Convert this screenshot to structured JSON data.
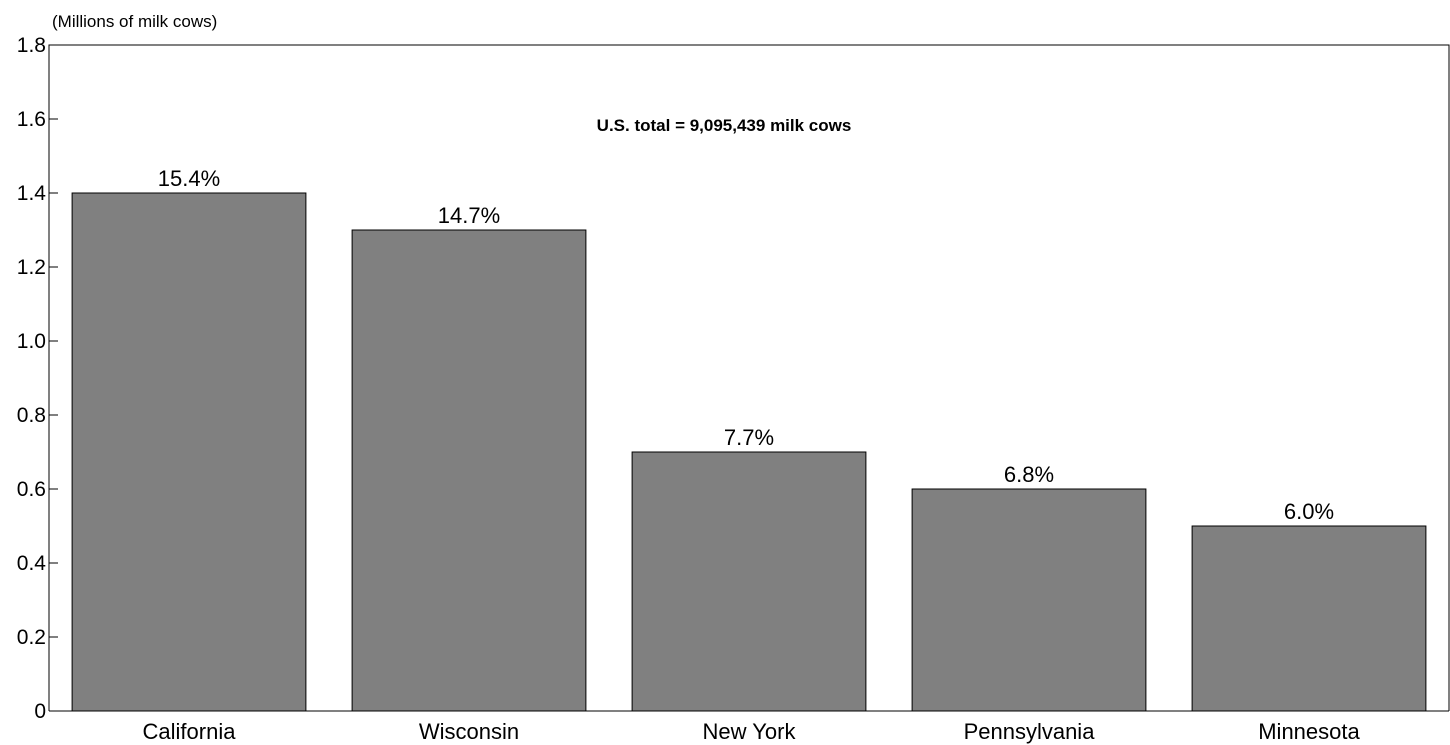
{
  "chart_data": {
    "type": "bar",
    "ylabel": "(Millions of milk cows)",
    "annotation": "U.S. total = 9,095,439 milk cows",
    "categories": [
      "California",
      "Wisconsin",
      "New York",
      "Pennsylvania",
      "Minnesota"
    ],
    "values": [
      1.4,
      1.3,
      0.7,
      0.6,
      0.5
    ],
    "data_labels": [
      "15.4%",
      "14.7%",
      "7.7%",
      "6.8%",
      "6.0%"
    ],
    "ylim": [
      0,
      1.8
    ],
    "yticks": [
      0,
      0.2,
      0.4,
      0.6,
      0.8,
      1.0,
      1.2,
      1.4,
      1.6,
      1.8
    ],
    "ytick_labels": [
      "0",
      "0.2",
      "0.4",
      "0.6",
      "0.8",
      "1.0",
      "1.2",
      "1.4",
      "1.6",
      "1.8"
    ],
    "grid": false,
    "legend": "none",
    "colors": {
      "bar_fill": "#808080",
      "bar_stroke": "#000000",
      "axis": "#000000",
      "background": "#ffffff"
    }
  }
}
